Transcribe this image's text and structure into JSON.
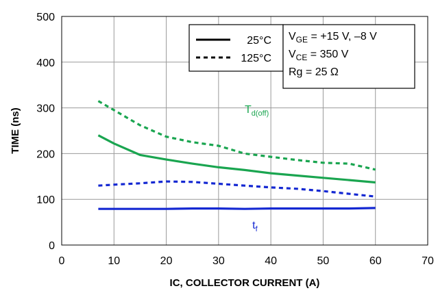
{
  "chart_data": {
    "type": "line",
    "xlabel": "IC, COLLECTOR CURRENT (A)",
    "ylabel": "TIME (ns)",
    "xlim": [
      0,
      70
    ],
    "ylim": [
      0,
      500
    ],
    "xticks": [
      "0",
      "10",
      "20",
      "30",
      "40",
      "50",
      "60",
      "70"
    ],
    "yticks": [
      "0",
      "100",
      "200",
      "300",
      "400",
      "500"
    ],
    "grid": true,
    "colors": {
      "td_off": "#1aa550",
      "tf": "#1428d2"
    },
    "series": [
      {
        "group": "td_off",
        "style": "solid",
        "x": [
          7,
          10,
          15,
          20,
          25,
          30,
          35,
          40,
          45,
          50,
          55,
          60
        ],
        "y": [
          240,
          222,
          197,
          187,
          178,
          170,
          164,
          157,
          152,
          147,
          142,
          137
        ]
      },
      {
        "group": "td_off",
        "style": "dashed",
        "x": [
          7,
          10,
          15,
          20,
          25,
          30,
          35,
          40,
          45,
          50,
          55,
          60
        ],
        "y": [
          315,
          295,
          262,
          237,
          225,
          217,
          200,
          193,
          186,
          180,
          178,
          165
        ]
      },
      {
        "group": "tf",
        "style": "solid",
        "x": [
          7,
          10,
          15,
          20,
          25,
          30,
          35,
          40,
          45,
          50,
          55,
          60
        ],
        "y": [
          79,
          79,
          79,
          79,
          80,
          80,
          79,
          80,
          80,
          80,
          80,
          81
        ]
      },
      {
        "group": "tf",
        "style": "dashed",
        "x": [
          7,
          10,
          15,
          20,
          25,
          30,
          35,
          40,
          45,
          50,
          55,
          60
        ],
        "y": [
          130,
          132,
          135,
          139,
          138,
          134,
          130,
          126,
          123,
          118,
          112,
          106
        ]
      }
    ],
    "legend": {
      "placement": "top-right",
      "entries": [
        {
          "label": "25°C",
          "style": "solid"
        },
        {
          "label": "125°C",
          "style": "dashed"
        }
      ]
    },
    "conditions": {
      "vge": {
        "main": "V",
        "sub": "GE",
        "rest": " = +15 V, –8 V"
      },
      "vce": {
        "main": "V",
        "sub": "CE",
        "rest": " = 350 V"
      },
      "rg": "Rg = 25 Ω"
    },
    "annotations": {
      "td_off": {
        "main": "T",
        "sub": "d(off)",
        "x": 35,
        "y": 235
      },
      "tf": {
        "main": "t",
        "sub": "f",
        "x": 40,
        "y": 45
      }
    }
  }
}
